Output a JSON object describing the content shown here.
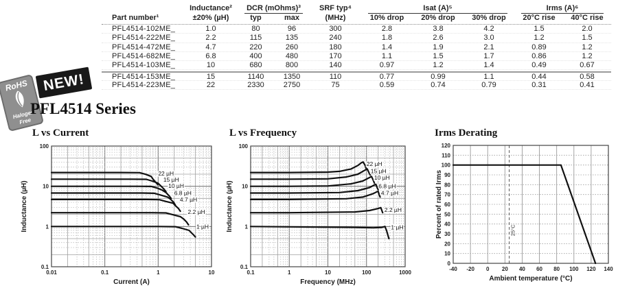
{
  "header": {
    "series_title": "PFL4514 Series"
  },
  "badges": {
    "new_label": "NEW!",
    "rohs_label": "RoHS",
    "halogen_line1": "Halogen",
    "halogen_line2": "Free"
  },
  "table": {
    "part_header": "Part number¹",
    "groups": {
      "inductance": {
        "label": "Inductance²",
        "sub": "±20% (µH)"
      },
      "dcr": {
        "label": "DCR (mOhms)³",
        "subs": [
          "typ",
          "max"
        ]
      },
      "srf": {
        "label": "SRF typ⁴",
        "sub": "(MHz)"
      },
      "isat": {
        "label": "Isat (A)⁵",
        "subs": [
          "10% drop",
          "20% drop",
          "30% drop"
        ]
      },
      "irms": {
        "label": "Irms (A)⁶",
        "subs": [
          "20°C rise",
          "40°C rise"
        ]
      }
    },
    "rows": [
      {
        "part": "PFL4514-102ME_",
        "values": [
          "1.0",
          "80",
          "96",
          "300",
          "2.8",
          "3.8",
          "4.2",
          "1.5",
          "2.0"
        ]
      },
      {
        "part": "PFL4514-222ME_",
        "values": [
          "2.2",
          "115",
          "135",
          "240",
          "1.8",
          "2.6",
          "3.0",
          "1.2",
          "1.5"
        ]
      },
      {
        "part": "PFL4514-472ME_",
        "values": [
          "4.7",
          "220",
          "260",
          "180",
          "1.4",
          "1.9",
          "2.1",
          "0.89",
          "1.2"
        ]
      },
      {
        "part": "PFL4514-682ME_",
        "values": [
          "6.8",
          "400",
          "480",
          "170",
          "1.1",
          "1.5",
          "1.7",
          "0.86",
          "1.2"
        ]
      },
      {
        "part": "PFL4514-103ME_",
        "values": [
          "10",
          "680",
          "800",
          "140",
          "0.97",
          "1.2",
          "1.4",
          "0.49",
          "0.67"
        ]
      },
      {
        "part": "PFL4514-153ME_",
        "values": [
          "15",
          "1140",
          "1350",
          "110",
          "0.77",
          "0.99",
          "1.1",
          "0.44",
          "0.58"
        ]
      },
      {
        "part": "PFL4514-223ME_",
        "values": [
          "22",
          "2330",
          "2750",
          "75",
          "0.59",
          "0.74",
          "0.79",
          "0.31",
          "0.41"
        ]
      }
    ]
  },
  "chart_data": [
    {
      "type": "line",
      "title": "L vs Current",
      "xlabel": "Current (A)",
      "ylabel": "Inductance (µH)",
      "xscale": "log",
      "yscale": "log",
      "xlim": [
        0.01,
        10
      ],
      "ylim": [
        0.1,
        100
      ],
      "xticks": [
        0.01,
        0.1,
        1,
        10
      ],
      "yticks": [
        0.1,
        1,
        10,
        100
      ],
      "grid": "log-major-minor",
      "legend_position": "inline-labels",
      "series": [
        {
          "name": "22 µH",
          "label_at": [
            1.0,
            21
          ],
          "points": [
            [
              0.01,
              22
            ],
            [
              0.2,
              22
            ],
            [
              0.45,
              21.8
            ],
            [
              0.59,
              19.8
            ],
            [
              0.74,
              17.6
            ],
            [
              0.79,
              15.4
            ],
            [
              0.88,
              13
            ],
            [
              0.98,
              11
            ]
          ]
        },
        {
          "name": "15 µH",
          "label_at": [
            1.25,
            14.6
          ],
          "points": [
            [
              0.01,
              15
            ],
            [
              0.3,
              15
            ],
            [
              0.6,
              14.9
            ],
            [
              0.77,
              13.5
            ],
            [
              0.99,
              12
            ],
            [
              1.1,
              10.5
            ],
            [
              1.25,
              8.8
            ],
            [
              1.4,
              7.4
            ]
          ]
        },
        {
          "name": "10 µH",
          "label_at": [
            1.55,
            10.2
          ],
          "points": [
            [
              0.01,
              10
            ],
            [
              0.4,
              10
            ],
            [
              0.75,
              9.9
            ],
            [
              0.97,
              9
            ],
            [
              1.2,
              8
            ],
            [
              1.4,
              7
            ],
            [
              1.6,
              5.8
            ],
            [
              1.75,
              5
            ]
          ]
        },
        {
          "name": "6.8 µH",
          "label_at": [
            2.0,
            6.8
          ],
          "points": [
            [
              0.01,
              6.8
            ],
            [
              0.5,
              6.8
            ],
            [
              0.85,
              6.7
            ],
            [
              1.1,
              6.1
            ],
            [
              1.5,
              5.4
            ],
            [
              1.7,
              4.8
            ],
            [
              1.95,
              4.0
            ],
            [
              2.1,
              3.4
            ]
          ]
        },
        {
          "name": "4.7 µH",
          "label_at": [
            2.55,
            4.7
          ],
          "points": [
            [
              0.01,
              4.7
            ],
            [
              0.6,
              4.7
            ],
            [
              1.05,
              4.65
            ],
            [
              1.4,
              4.2
            ],
            [
              1.9,
              3.8
            ],
            [
              2.1,
              3.3
            ],
            [
              2.4,
              2.8
            ],
            [
              2.6,
              2.4
            ]
          ]
        },
        {
          "name": "2.2 µH",
          "label_at": [
            3.6,
            2.3
          ],
          "points": [
            [
              0.01,
              2.2
            ],
            [
              0.8,
              2.2
            ],
            [
              1.4,
              2.18
            ],
            [
              1.8,
              2.0
            ],
            [
              2.6,
              1.76
            ],
            [
              3.0,
              1.54
            ],
            [
              3.4,
              1.3
            ],
            [
              3.7,
              1.1
            ]
          ]
        },
        {
          "name": "1 µH",
          "label_at": [
            5.2,
            1.0
          ],
          "points": [
            [
              0.01,
              1.0
            ],
            [
              1.0,
              1.0
            ],
            [
              2.1,
              0.99
            ],
            [
              2.8,
              0.9
            ],
            [
              3.8,
              0.8
            ],
            [
              4.2,
              0.7
            ],
            [
              4.6,
              0.62
            ],
            [
              5.0,
              0.55
            ]
          ]
        }
      ]
    },
    {
      "type": "line",
      "title": "L vs Frequency",
      "xlabel": "Frequency (MHz)",
      "ylabel": "Inductance (µH)",
      "xscale": "log",
      "yscale": "log",
      "xlim": [
        0.1,
        1000
      ],
      "ylim": [
        0.1,
        100
      ],
      "xticks": [
        0.1,
        1,
        10,
        100,
        1000
      ],
      "yticks": [
        0.1,
        1,
        10,
        100
      ],
      "grid": "log-major-minor",
      "legend_position": "inline-labels",
      "series": [
        {
          "name": "22 µH",
          "label_at": [
            100,
            36
          ],
          "points": [
            [
              0.1,
              22
            ],
            [
              1,
              22
            ],
            [
              10,
              22.5
            ],
            [
              20,
              23.5
            ],
            [
              40,
              27
            ],
            [
              60,
              33
            ],
            [
              75,
              39
            ],
            [
              82,
              40
            ],
            [
              92,
              33
            ],
            [
              100,
              26
            ]
          ]
        },
        {
          "name": "15 µH",
          "label_at": [
            128,
            24
          ],
          "points": [
            [
              0.1,
              15
            ],
            [
              1,
              15
            ],
            [
              10,
              15.3
            ],
            [
              30,
              17
            ],
            [
              60,
              20
            ],
            [
              90,
              25
            ],
            [
              105,
              27
            ],
            [
              115,
              22
            ],
            [
              125,
              19
            ]
          ]
        },
        {
          "name": "10 µH",
          "label_at": [
            158,
            16.5
          ],
          "points": [
            [
              0.1,
              10
            ],
            [
              1,
              10
            ],
            [
              10,
              10.2
            ],
            [
              40,
              11.5
            ],
            [
              80,
              13.5
            ],
            [
              120,
              16.5
            ],
            [
              135,
              17.5
            ],
            [
              150,
              14
            ],
            [
              160,
              12
            ]
          ]
        },
        {
          "name": "6.8 µH",
          "label_at": [
            205,
            10
          ],
          "points": [
            [
              0.1,
              6.8
            ],
            [
              1,
              6.8
            ],
            [
              20,
              7
            ],
            [
              60,
              7.8
            ],
            [
              120,
              9.3
            ],
            [
              160,
              10.8
            ],
            [
              175,
              11.2
            ],
            [
              190,
              9.2
            ],
            [
              200,
              8.2
            ]
          ]
        },
        {
          "name": "4.7 µH",
          "label_at": [
            238,
            6.8
          ],
          "points": [
            [
              0.1,
              4.7
            ],
            [
              1,
              4.7
            ],
            [
              30,
              4.9
            ],
            [
              80,
              5.4
            ],
            [
              150,
              6.6
            ],
            [
              185,
              7.3
            ],
            [
              200,
              7.5
            ],
            [
              215,
              6.1
            ],
            [
              225,
              5.4
            ]
          ]
        },
        {
          "name": "2.2 µH",
          "label_at": [
            290,
            2.6
          ],
          "points": [
            [
              0.1,
              2.2
            ],
            [
              1,
              2.2
            ],
            [
              50,
              2.3
            ],
            [
              120,
              2.5
            ],
            [
              200,
              2.8
            ],
            [
              235,
              2.95
            ],
            [
              250,
              2.5
            ],
            [
              262,
              2.2
            ]
          ]
        },
        {
          "name": "1 µH",
          "label_at": [
            430,
            0.95
          ],
          "points": [
            [
              0.1,
              1.0
            ],
            [
              1,
              0.98
            ],
            [
              50,
              0.95
            ],
            [
              150,
              0.93
            ],
            [
              250,
              0.95
            ],
            [
              300,
              1.0
            ],
            [
              330,
              0.8
            ],
            [
              360,
              0.6
            ],
            [
              380,
              0.5
            ]
          ]
        }
      ]
    },
    {
      "type": "line",
      "title": "Irms Derating",
      "xlabel": "Ambient temperature (°C)",
      "ylabel": "Percent of rated Irms",
      "xscale": "linear",
      "yscale": "linear",
      "xlim": [
        -40,
        140
      ],
      "ylim": [
        0,
        120
      ],
      "xtick_step": 20,
      "ytick_step": 10,
      "grid": "linear",
      "series": [
        {
          "name": "derating-line",
          "points": [
            [
              -40,
              100
            ],
            [
              85,
              100
            ],
            [
              125,
              0
            ]
          ]
        }
      ],
      "annotations": [
        {
          "type": "vline-dashed",
          "x": 25,
          "label": "25°C"
        }
      ]
    }
  ]
}
